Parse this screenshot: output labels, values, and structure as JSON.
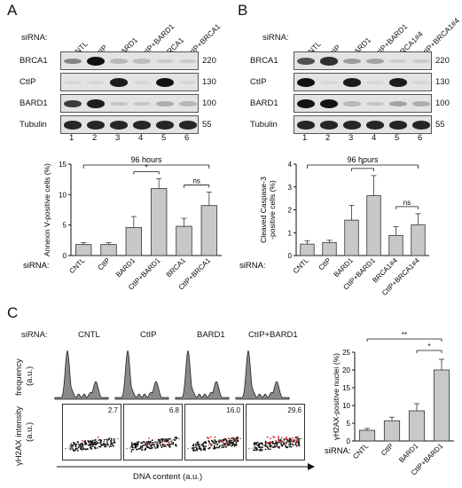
{
  "panels": {
    "a": {
      "letter": "A",
      "sirna_label": "siRNA:",
      "conditions": [
        "CNTL",
        "CtIP",
        "BARD1",
        "CtIP+BARD1",
        "BRCA1",
        "CtIP+BRCA1"
      ],
      "blots": [
        {
          "name": "BRCA1",
          "mw": "220",
          "intensity": [
            0.45,
            1.0,
            0.2,
            0.18,
            0.12,
            0.12
          ]
        },
        {
          "name": "CtIP",
          "mw": "130",
          "intensity": [
            0.05,
            0.03,
            0.95,
            0.05,
            1.0,
            0.05
          ]
        },
        {
          "name": "BARD1",
          "mw": "100",
          "intensity": [
            0.8,
            0.95,
            0.15,
            0.15,
            0.25,
            0.2
          ]
        },
        {
          "name": "Tubulin",
          "mw": "55",
          "intensity": [
            0.9,
            0.9,
            0.9,
            0.9,
            0.9,
            0.9
          ]
        }
      ],
      "lanes": [
        "1",
        "2",
        "3",
        "4",
        "5",
        "6"
      ]
    },
    "b": {
      "letter": "B",
      "sirna_label": "siRNA:",
      "conditions": [
        "CNTL",
        "CtIP",
        "BARD1",
        "CtIP+BARD1",
        "BRCA1#4",
        "CtIP+BRCA1#4"
      ],
      "blots": [
        {
          "name": "BRCA1",
          "mw": "220",
          "intensity": [
            0.7,
            0.85,
            0.35,
            0.3,
            0.1,
            0.12
          ]
        },
        {
          "name": "CtIP",
          "mw": "130",
          "intensity": [
            1.0,
            0.05,
            0.95,
            0.05,
            0.95,
            0.05
          ]
        },
        {
          "name": "BARD1",
          "mw": "100",
          "intensity": [
            1.0,
            1.0,
            0.2,
            0.15,
            0.3,
            0.25
          ]
        },
        {
          "name": "Tubulin",
          "mw": "55",
          "intensity": [
            0.9,
            0.9,
            0.9,
            0.9,
            0.9,
            0.9
          ]
        }
      ],
      "lanes": [
        "1",
        "2",
        "3",
        "4",
        "5",
        "6"
      ]
    },
    "c": {
      "letter": "C",
      "sirna_label": "siRNA:",
      "conditions": [
        "CNTL",
        "CtIP",
        "BARD1",
        "CtIP+BARD1"
      ],
      "frequency_label": "frequency\n(a.u.)",
      "frequency_label_line1": "frequency",
      "frequency_label_line2": "(a.u.)",
      "intensity_label": "γH2AX intensity",
      "intensity_label_unit": "(a.u.)",
      "dna_label": "DNA content (a.u.)",
      "scatter_percents": [
        "2.7",
        "6.8",
        "16.0",
        "29.6"
      ]
    }
  },
  "chart_data": [
    {
      "type": "bar",
      "title": "96 hours",
      "ylabel": "Annexin V-positive cells (%)",
      "xlabel": "siRNA:",
      "categories": [
        "CNTL",
        "CtIP",
        "BARD1",
        "CtIP+BARD1",
        "BRCA1",
        "CtIP+BRCA1"
      ],
      "values": [
        1.8,
        1.8,
        4.6,
        11.0,
        4.8,
        8.2
      ],
      "errors": [
        0.3,
        0.3,
        1.8,
        1.6,
        1.3,
        2.2
      ],
      "ylim": [
        0,
        15
      ],
      "yticks": [
        "0",
        "5",
        "10",
        "15"
      ],
      "significance": [
        {
          "from": 2,
          "to": 3,
          "label": "*"
        },
        {
          "from": 4,
          "to": 5,
          "label": "ns"
        }
      ],
      "bracket_label": "96 hours"
    },
    {
      "type": "bar",
      "title": "96 hours",
      "ylabel": "Cleaved Caspase-3 -positive cells (%)",
      "ylabel_line1": "Cleaved Caspase-3",
      "ylabel_line2": "-positive cells (%)",
      "xlabel": "siRNA:",
      "categories": [
        "CNTL",
        "CtIP",
        "BARD1",
        "CtIP+BARD1",
        "BRCA1#4",
        "CtIP+BRCA1#4"
      ],
      "values": [
        0.5,
        0.57,
        1.55,
        2.62,
        0.88,
        1.35
      ],
      "errors": [
        0.15,
        0.1,
        0.65,
        0.88,
        0.38,
        0.48
      ],
      "ylim": [
        0,
        4
      ],
      "yticks": [
        "0",
        "1",
        "2",
        "3",
        "4"
      ],
      "significance": [
        {
          "from": 2,
          "to": 3,
          "label": "*"
        },
        {
          "from": 4,
          "to": 5,
          "label": "ns"
        }
      ],
      "bracket_label": "96 hours"
    },
    {
      "type": "bar",
      "ylabel": "γH2AX-positive nuclei (%)",
      "xlabel": "siRNA:",
      "categories": [
        "CNTL",
        "CtIP",
        "BARD1",
        "CtIP+BARD1"
      ],
      "values": [
        3.0,
        5.7,
        8.5,
        20.0
      ],
      "errors": [
        0.5,
        1.0,
        2.0,
        3.0
      ],
      "ylim": [
        0,
        25
      ],
      "yticks": [
        "0",
        "5",
        "10",
        "15",
        "20",
        "25"
      ],
      "significance": [
        {
          "from": 0,
          "to": 3,
          "label": "**"
        },
        {
          "from": 2,
          "to": 3,
          "label": "*"
        }
      ]
    }
  ]
}
